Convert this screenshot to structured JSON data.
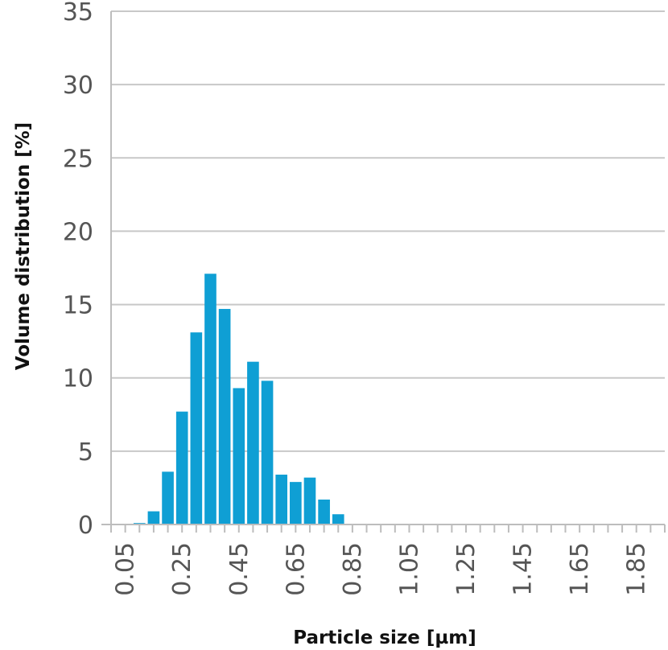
{
  "chart_data": {
    "type": "bar",
    "xlabel": "Particle size [µm]",
    "ylabel": "Volume distribution [%]",
    "ylim": [
      0,
      35
    ],
    "yticks": [
      "0",
      "5",
      "10",
      "15",
      "20",
      "25",
      "30",
      "35"
    ],
    "xlim": [
      0.0,
      1.95
    ],
    "xticks": [
      "0.05",
      "0.25",
      "0.45",
      "0.65",
      "0.85",
      "1.05",
      "1.25",
      "1.45",
      "1.65",
      "1.85"
    ],
    "grid": "horizontal",
    "bar_color": "#0f9fd4",
    "bars": [
      {
        "x": 0.1,
        "value": 0.1
      },
      {
        "x": 0.15,
        "value": 0.9
      },
      {
        "x": 0.2,
        "value": 3.6
      },
      {
        "x": 0.25,
        "value": 7.7
      },
      {
        "x": 0.3,
        "value": 13.1
      },
      {
        "x": 0.35,
        "value": 17.1
      },
      {
        "x": 0.4,
        "value": 14.7
      },
      {
        "x": 0.45,
        "value": 9.3
      },
      {
        "x": 0.5,
        "value": 11.1
      },
      {
        "x": 0.55,
        "value": 9.8
      },
      {
        "x": 0.6,
        "value": 3.4
      },
      {
        "x": 0.65,
        "value": 2.9
      },
      {
        "x": 0.7,
        "value": 3.2
      },
      {
        "x": 0.75,
        "value": 1.7
      },
      {
        "x": 0.8,
        "value": 0.7
      }
    ]
  }
}
